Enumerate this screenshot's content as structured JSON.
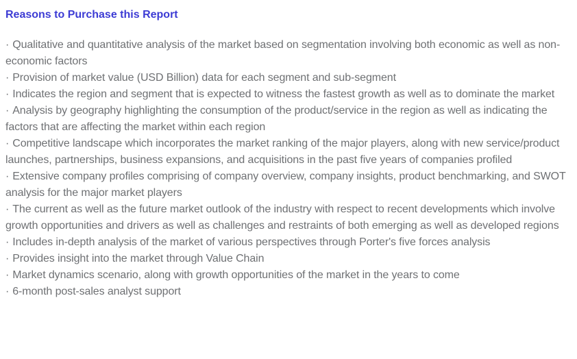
{
  "page": {
    "heading": "Reasons to Purchase this Report",
    "bullet_char": "·",
    "colors": {
      "heading_text": "#3c3bd4",
      "body_text": "#6e7073",
      "background": "#ffffff"
    },
    "reasons": [
      "Qualitative and quantitative analysis of the market based on segmentation involving both economic as well as non-economic factors",
      "Provision of market value (USD Billion) data for each segment and sub-segment",
      "Indicates the region and segment that is expected to witness the fastest growth as well as to dominate the market",
      "Analysis by geography highlighting the consumption of the product/service in the region as well as indicating the factors that are affecting the market within each region",
      "Competitive landscape which incorporates the market ranking of the major players, along with new service/product launches, partnerships, business expansions, and acquisitions in the past five years of companies profiled",
      "Extensive company profiles comprising of company overview, company insights, product benchmarking, and SWOT analysis for the major market players",
      "The current as well as the future market outlook of the industry with respect to recent developments which involve growth opportunities and drivers as well as challenges and restraints of both emerging as well as developed regions",
      "Includes in-depth analysis of the market of various perspectives through Porter's five forces analysis",
      "Provides insight into the market through Value Chain",
      "Market dynamics scenario, along with growth opportunities of the market in the years to come",
      "6-month post-sales analyst support"
    ]
  }
}
